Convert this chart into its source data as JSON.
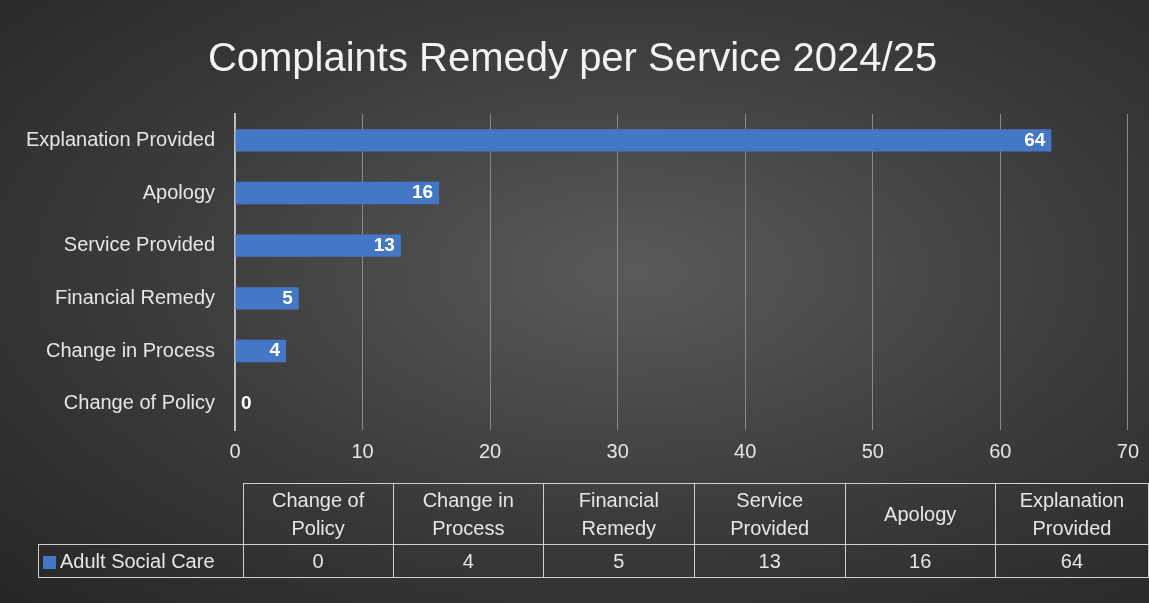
{
  "chart_data": [
    {
      "type": "bar",
      "orientation": "horizontal",
      "title": "Complaints Remedy per Service 2024/25",
      "categories": [
        "Explanation Provided",
        "Apology",
        "Service Provided",
        "Financial Remedy",
        "Change in Process",
        "Change of Policy"
      ],
      "series": [
        {
          "color": "#4478c6",
          "values": [
            64,
            16,
            13,
            5,
            4,
            0
          ]
        }
      ],
      "xlim": [
        0,
        70
      ],
      "xticks": [
        0,
        10,
        20,
        30,
        40,
        50,
        60,
        70
      ],
      "grid": "x",
      "data_labels": true
    },
    {
      "type": "other",
      "categories": [
        "Change of Policy",
        "Change in Process",
        "Financial Remedy",
        "Service Provided",
        "Apology",
        "Explanation Provided"
      ],
      "series": [
        {
          "name": "Adult Social Care",
          "color": "#4478c6",
          "values": [
            0,
            4,
            5,
            13,
            16,
            64
          ]
        }
      ],
      "data_labels": true
    }
  ]
}
